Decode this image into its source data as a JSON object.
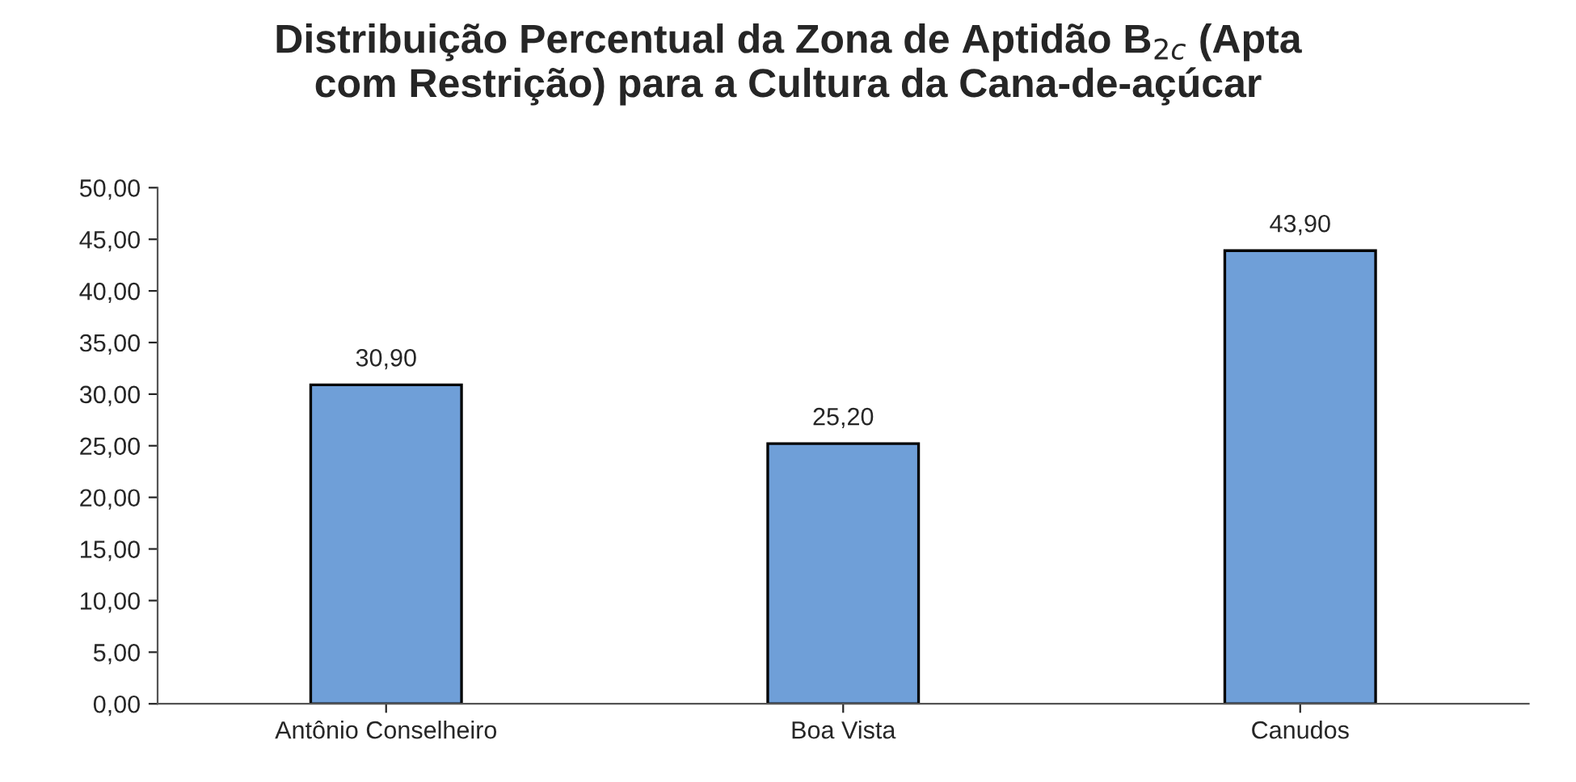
{
  "chart_data": {
    "type": "bar",
    "title": "Distribuição Percentual da Zona de Aptidão B$_{2c}$ (Apta\ncom Restrição) para a Cultura da Cana-de-açúcar",
    "categories": [
      "Antônio Conselheiro",
      "Boa Vista",
      "Canudos"
    ],
    "values": [
      30.9,
      25.2,
      43.9
    ],
    "value_labels": [
      "30,90",
      "25,20",
      "43,90"
    ],
    "color": "#6f9fd8",
    "ylim": [
      0,
      50
    ],
    "yticks": [
      {
        "value": 0,
        "label": "0,00"
      },
      {
        "value": 5,
        "label": "5,00"
      },
      {
        "value": 10,
        "label": "10,00"
      },
      {
        "value": 15,
        "label": "15,00"
      },
      {
        "value": 20,
        "label": "20,00"
      },
      {
        "value": 25,
        "label": "25,00"
      },
      {
        "value": 30,
        "label": "30,00"
      },
      {
        "value": 35,
        "label": "35,00"
      },
      {
        "value": 40,
        "label": "40,00"
      },
      {
        "value": 45,
        "label": "45,00"
      },
      {
        "value": 50,
        "label": "50,00"
      }
    ],
    "grid": false
  }
}
